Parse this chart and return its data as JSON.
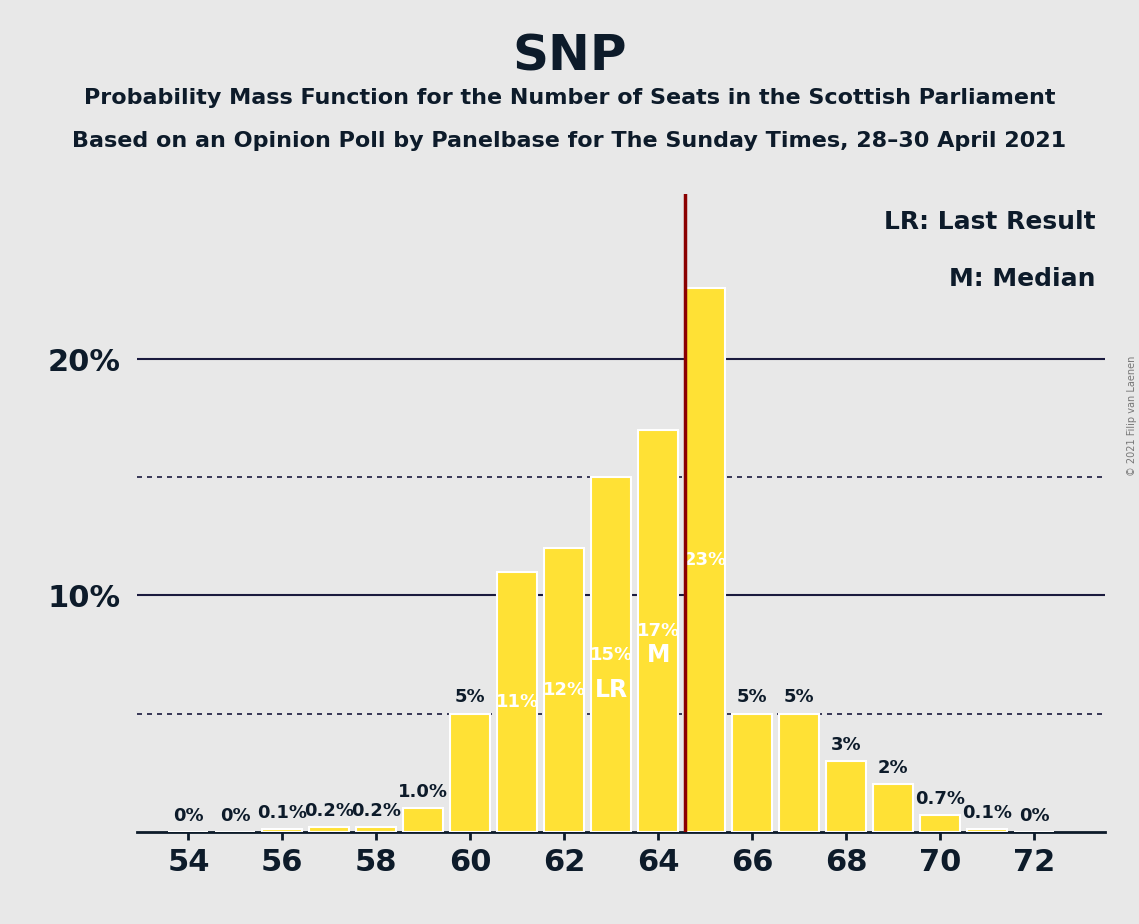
{
  "title": "SNP",
  "subtitle1": "Probability Mass Function for the Number of Seats in the Scottish Parliament",
  "subtitle2": "Based on an Opinion Poll by Panelbase for The Sunday Times, 28–30 April 2021",
  "background_color": "#e8e8e8",
  "bar_color": "#FFE135",
  "bar_edge_color": "#ffffff",
  "seats": [
    54,
    55,
    56,
    57,
    58,
    59,
    60,
    61,
    62,
    63,
    64,
    65,
    66,
    67,
    68,
    69,
    70,
    71,
    72
  ],
  "values": [
    0.0,
    0.0,
    0.1,
    0.2,
    0.2,
    1.0,
    5.0,
    11.0,
    12.0,
    15.0,
    17.0,
    23.0,
    5.0,
    5.0,
    3.0,
    2.0,
    0.7,
    0.1,
    0.0
  ],
  "labels": [
    "0%",
    "0%",
    "0.1%",
    "0.2%",
    "0.2%",
    "1.0%",
    "5%",
    "11%",
    "12%",
    "15%",
    "17%",
    "23%",
    "5%",
    "5%",
    "3%",
    "2%",
    "0.7%",
    "0.1%",
    "0%"
  ],
  "last_result_seat": 63,
  "median_seat": 64,
  "red_line_x": 64.575,
  "dotted_lines": [
    5.0,
    15.0
  ],
  "solid_lines": [
    10.0,
    20.0
  ],
  "xlabel_seats": [
    54,
    56,
    58,
    60,
    62,
    64,
    66,
    68,
    70,
    72
  ],
  "legend_lr": "LR: Last Result",
  "legend_m": "M: Median",
  "copyright": "© 2021 Filip van Laenen",
  "title_fontsize": 36,
  "subtitle_fontsize": 16,
  "axis_label_fontsize": 22,
  "bar_label_fontsize": 13,
  "legend_fontsize": 18,
  "ylim_max": 27,
  "xlim_min": 52.9,
  "xlim_max": 73.5
}
